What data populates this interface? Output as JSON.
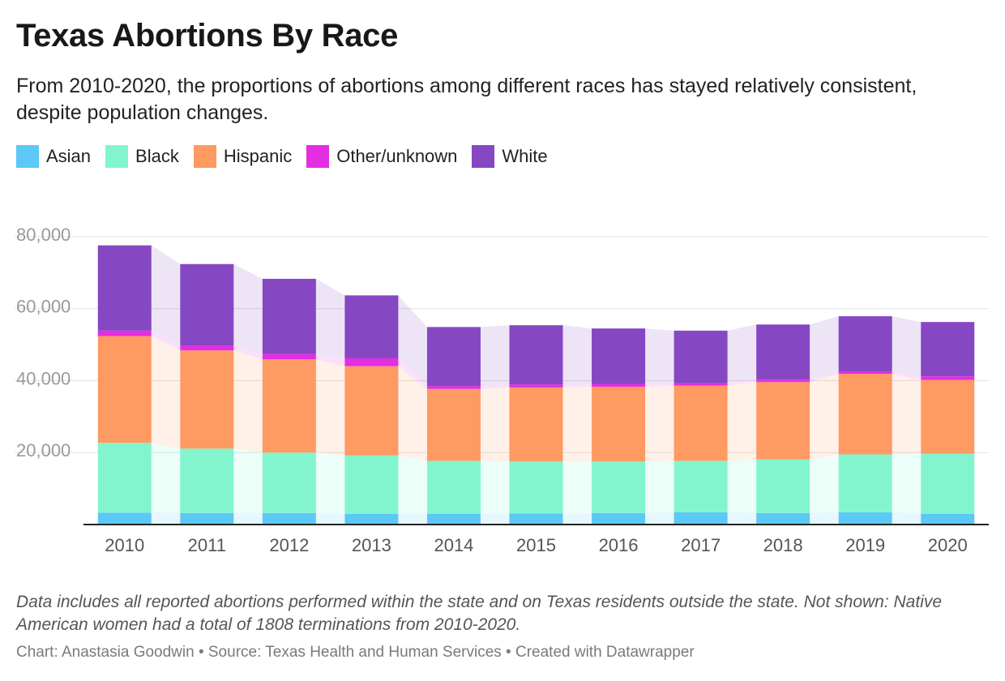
{
  "header": {
    "title": "Texas Abortions By Race",
    "subtitle": "From 2010-2020, the proportions of abortions among different races has stayed relatively consistent, despite population changes."
  },
  "footer": {
    "notes": "Data includes all reported abortions performed within the state and on Texas residents outside the state. Not shown: Native American women had a total of 1808 terminations from 2010-2020.",
    "byline": "Chart: Anastasia Goodwin • Source: Texas Health and Human Services • Created with Datawrapper"
  },
  "chart_data": {
    "type": "bar",
    "stacked": true,
    "categories": [
      "2010",
      "2011",
      "2012",
      "2013",
      "2014",
      "2015",
      "2016",
      "2017",
      "2018",
      "2019",
      "2020"
    ],
    "series": [
      {
        "name": "Asian",
        "color": "#5bc8f5",
        "values": [
          3300,
          3200,
          3200,
          3000,
          3000,
          3100,
          3200,
          3400,
          3200,
          3400,
          3000
        ]
      },
      {
        "name": "Black",
        "color": "#82f5cf",
        "values": [
          19400,
          17900,
          16800,
          16200,
          14700,
          14400,
          14300,
          14300,
          14900,
          16100,
          16700
        ]
      },
      {
        "name": "Hispanic",
        "color": "#fe9a62",
        "values": [
          29700,
          27300,
          25900,
          24800,
          20000,
          20600,
          20800,
          20900,
          21500,
          22400,
          20500
        ]
      },
      {
        "name": "Other/unknown",
        "color": "#e32ee2",
        "values": [
          1500,
          1400,
          1500,
          2200,
          800,
          800,
          800,
          700,
          700,
          700,
          1000
        ]
      },
      {
        "name": "White",
        "color": "#8647c3",
        "values": [
          23700,
          22600,
          20900,
          17500,
          16400,
          16500,
          15400,
          14600,
          15300,
          15300,
          15100
        ]
      }
    ],
    "y_ticks": [
      "80,000",
      "60,000",
      "40,000",
      "20,000"
    ],
    "y_tick_values": [
      80000,
      60000,
      40000,
      20000
    ],
    "ylim": [
      0,
      80000
    ],
    "grid": true,
    "legend": "top-left",
    "connectors": true
  }
}
